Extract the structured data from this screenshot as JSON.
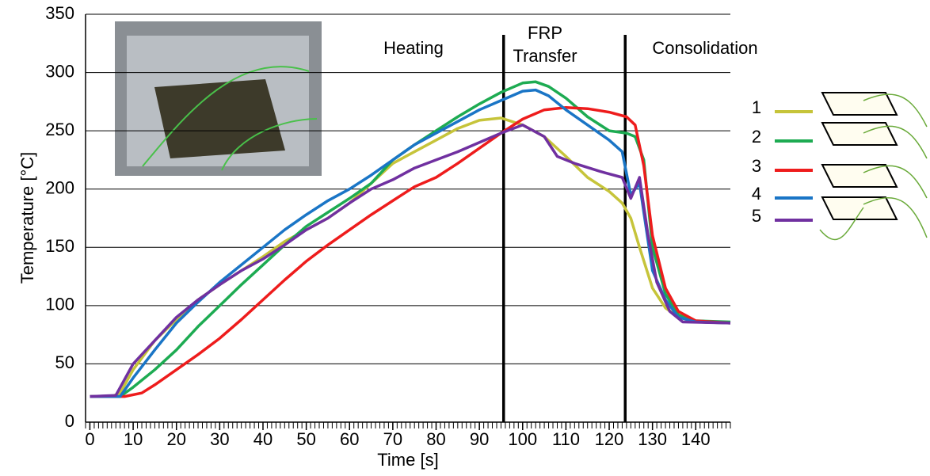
{
  "chart_data": {
    "type": "line",
    "x_label": "Time [s]",
    "y_label": "Temperature [°C]",
    "xlim": [
      -1,
      148
    ],
    "xticks": [
      0,
      10,
      20,
      30,
      40,
      50,
      60,
      70,
      80,
      90,
      100,
      110,
      120,
      130,
      140
    ],
    "x_minor_tick_interval": 1,
    "ylim": [
      0,
      350
    ],
    "yticks": [
      0,
      50,
      100,
      150,
      200,
      250,
      300,
      350
    ],
    "grid": true,
    "phase_boundaries": [
      95.6,
      123.7
    ],
    "annotations": [
      "Heating",
      "FRP",
      "Transfer",
      "Consolidation"
    ],
    "series": [
      {
        "name": "1",
        "color": "#c6c43a",
        "x": [
          0,
          5,
          7,
          10,
          15,
          20,
          25,
          30,
          35,
          40,
          45,
          50,
          55,
          60,
          65,
          70,
          75,
          80,
          85,
          90,
          95,
          100,
          105,
          110,
          115,
          120,
          123,
          125,
          127,
          130,
          133,
          136,
          140,
          148
        ],
        "values": [
          22,
          22,
          25,
          45,
          70,
          88,
          105,
          118,
          130,
          142,
          155,
          165,
          175,
          188,
          205,
          222,
          232,
          242,
          252,
          259,
          261,
          255,
          245,
          228,
          210,
          198,
          188,
          175,
          150,
          115,
          98,
          90,
          86,
          85
        ]
      },
      {
        "name": "2",
        "color": "#1dab52",
        "x": [
          0,
          7,
          10,
          15,
          20,
          25,
          30,
          35,
          40,
          45,
          50,
          55,
          60,
          65,
          70,
          75,
          80,
          85,
          90,
          95,
          100,
          103,
          106,
          110,
          115,
          120,
          124,
          126,
          128,
          130,
          133,
          136,
          140,
          148
        ],
        "values": [
          22,
          22,
          30,
          45,
          62,
          82,
          100,
          118,
          135,
          152,
          168,
          180,
          192,
          205,
          225,
          238,
          250,
          262,
          273,
          283,
          291,
          292,
          288,
          278,
          262,
          250,
          248,
          245,
          225,
          150,
          110,
          92,
          87,
          86
        ]
      },
      {
        "name": "3",
        "color": "#ee1c1c",
        "x": [
          0,
          8,
          12,
          15,
          20,
          25,
          30,
          35,
          40,
          45,
          50,
          55,
          60,
          65,
          70,
          75,
          80,
          85,
          90,
          95,
          100,
          105,
          110,
          115,
          120,
          124,
          126,
          128,
          130,
          133,
          136,
          140,
          148
        ],
        "values": [
          22,
          22,
          25,
          32,
          45,
          58,
          72,
          88,
          105,
          122,
          138,
          152,
          165,
          178,
          190,
          202,
          210,
          222,
          235,
          248,
          260,
          268,
          270,
          269,
          266,
          262,
          255,
          220,
          160,
          115,
          95,
          87,
          85
        ]
      },
      {
        "name": "4",
        "color": "#1a75c6",
        "x": [
          0,
          7,
          10,
          15,
          20,
          25,
          30,
          35,
          40,
          45,
          50,
          55,
          60,
          65,
          70,
          75,
          80,
          85,
          90,
          95,
          100,
          103,
          106,
          110,
          115,
          120,
          123,
          125,
          126,
          127,
          128,
          130,
          133,
          136,
          140,
          148
        ],
        "values": [
          22,
          22,
          38,
          62,
          85,
          103,
          120,
          135,
          150,
          165,
          178,
          190,
          200,
          212,
          225,
          238,
          248,
          258,
          268,
          276,
          284,
          285,
          280,
          268,
          255,
          242,
          232,
          195,
          200,
          205,
          180,
          130,
          105,
          90,
          86,
          85
        ]
      },
      {
        "name": "5",
        "color": "#7030a0",
        "x": [
          0,
          6,
          10,
          15,
          20,
          25,
          30,
          35,
          40,
          45,
          50,
          55,
          60,
          65,
          70,
          75,
          80,
          85,
          90,
          95,
          100,
          105,
          108,
          112,
          118,
          123,
          125,
          127,
          129,
          131,
          134,
          137,
          148
        ],
        "values": [
          22,
          23,
          50,
          70,
          90,
          105,
          118,
          130,
          140,
          152,
          165,
          175,
          188,
          200,
          208,
          218,
          225,
          232,
          240,
          248,
          255,
          245,
          228,
          222,
          215,
          210,
          192,
          210,
          160,
          120,
          95,
          86,
          85
        ]
      }
    ]
  }
}
